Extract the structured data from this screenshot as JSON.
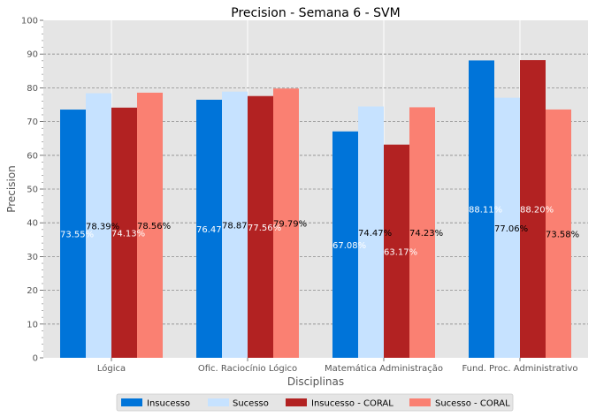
{
  "chart_data": {
    "type": "bar",
    "title": "Precision - Semana 6 - SVM",
    "xlabel": "Disciplinas",
    "ylabel": "Precision",
    "ylim": [
      0,
      100
    ],
    "yticks": [
      0,
      10,
      20,
      30,
      40,
      50,
      60,
      70,
      80,
      90,
      100
    ],
    "grid": true,
    "legend_position": "bottom",
    "categories": [
      "Lógica",
      "Ofic. Raciocínio Lógico",
      "Matemática Administração",
      "Fund. Proc. Administrativo"
    ],
    "series": [
      {
        "name": "Insucesso",
        "color": "#0074d9",
        "label_color": "#ffffff",
        "values": [
          73.55,
          76.47,
          67.08,
          88.11
        ],
        "labels": [
          "73.55%",
          "76.47",
          "67.08%",
          "88.11%"
        ]
      },
      {
        "name": "Sucesso",
        "color": "#c6e2ff",
        "label_color": "#000000",
        "values": [
          78.39,
          78.87,
          74.47,
          77.06
        ],
        "labels": [
          "78.39%",
          "78.87",
          "74.47%",
          "77.06%"
        ]
      },
      {
        "name": "Insucesso - CORAL",
        "color": "#b22222",
        "label_color": "#ffffff",
        "values": [
          74.13,
          77.56,
          63.17,
          88.2
        ],
        "labels": [
          "74.13%",
          "77.56%",
          "63.17%",
          "88.20%"
        ]
      },
      {
        "name": "Sucesso - CORAL",
        "color": "#fa8072",
        "label_color": "#000000",
        "values": [
          78.56,
          79.79,
          74.23,
          73.58
        ],
        "labels": [
          "78.56%",
          "79.79%",
          "74.23%",
          "73.58%"
        ]
      }
    ]
  }
}
